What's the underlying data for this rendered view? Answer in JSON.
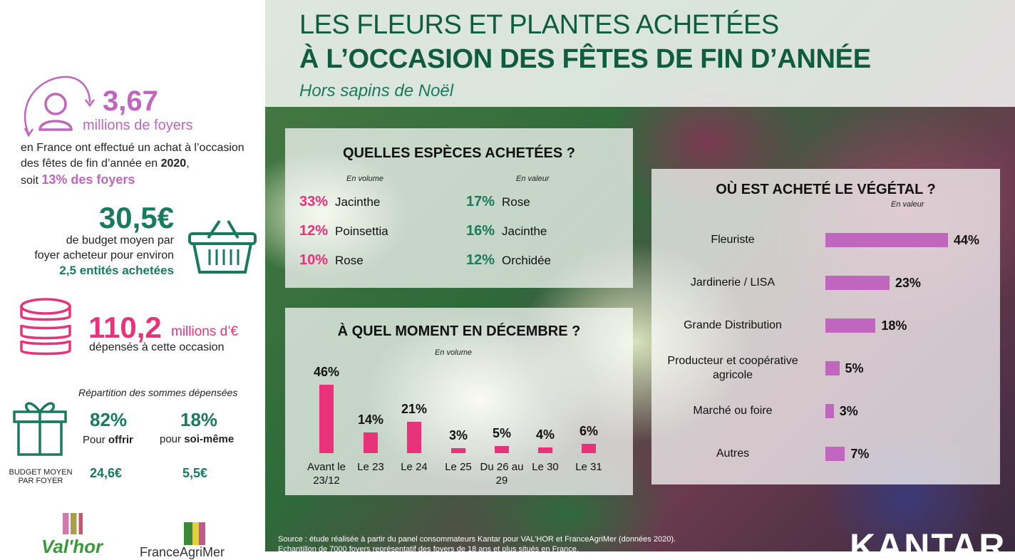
{
  "left": {
    "households": {
      "value": "3,67",
      "unit": "millions de foyers",
      "text1": "en France ont effectué un achat à l’occasion",
      "text2a": "des fêtes de fin d’année en ",
      "year": "2020",
      "text2b": ",",
      "text3a": "soit ",
      "share": "13% des foyers"
    },
    "budget": {
      "value": "30,5€",
      "text1": "de budget moyen par",
      "text2": "foyer acheteur pour environ",
      "entities": "2,5 entités achetées"
    },
    "total": {
      "value": "110,2",
      "unit": "millions d’€",
      "text": "dépensés à cette occasion"
    },
    "split": {
      "title": "Répartition des sommes dépensées",
      "gift_pct": "82%",
      "gift_label_a": "Pour ",
      "gift_label_b": "offrir",
      "self_pct": "18%",
      "self_label_a": "pour ",
      "self_label_b": "soi-même",
      "budget_label": "BUDGET MOYEN PAR FOYER",
      "gift_budget": "24,6€",
      "self_budget": "5,5€"
    },
    "logos": {
      "valhor": "Val'hor",
      "franceagrimer": "FranceAgriMer"
    }
  },
  "header": {
    "title1": "LES FLEURS ET PLANTES ACHETÉES",
    "title2": "À L’OCCASION DES FÊTES DE FIN D’ANNÉE",
    "subtitle": "Hors sapins de Noël"
  },
  "colors": {
    "pink": "#e8337a",
    "violet": "#c066be",
    "green": "#1a7a5e",
    "title": "#0f5c40"
  },
  "chart_data": [
    {
      "type": "table",
      "title": "QUELLES ESPÈCES ACHETÉES ?",
      "columns": [
        {
          "label": "En volume",
          "rows": [
            {
              "pct": "33%",
              "name": "Jacinthe"
            },
            {
              "pct": "12%",
              "name": "Poinsettia"
            },
            {
              "pct": "10%",
              "name": "Rose"
            }
          ]
        },
        {
          "label": "En valeur",
          "rows": [
            {
              "pct": "17%",
              "name": "Rose"
            },
            {
              "pct": "16%",
              "name": "Jacinthe"
            },
            {
              "pct": "12%",
              "name": "Orchidée"
            }
          ]
        }
      ]
    },
    {
      "type": "bar",
      "title": "À QUEL MOMENT EN DÉCEMBRE ?",
      "subtitle": "En volume",
      "categories": [
        "Avant le 23/12",
        "Le 23",
        "Le 24",
        "Le 25",
        "Du 26 au 29",
        "Le 30",
        "Le 31"
      ],
      "values": [
        46,
        14,
        21,
        3,
        5,
        4,
        6
      ],
      "labels": [
        "46%",
        "14%",
        "21%",
        "3%",
        "5%",
        "4%",
        "6%"
      ]
    },
    {
      "type": "bar",
      "orientation": "horizontal",
      "title": "OÙ EST ACHETÉ LE VÉGÉTAL ?",
      "subtitle": "En valeur",
      "categories": [
        "Fleuriste",
        "Jardinerie / LISA",
        "Grande Distribution",
        "Producteur et coopérative agricole",
        "Marché ou foire",
        "Autres"
      ],
      "values": [
        44,
        23,
        18,
        5,
        3,
        7
      ],
      "labels": [
        "44%",
        "23%",
        "18%",
        "5%",
        "3%",
        "7%"
      ]
    }
  ],
  "footer": {
    "source1": "Source : étude réalisée à partir du panel consommateurs Kantar pour VAL’HOR et FranceAgriMer (données 2020).",
    "source2": "Echantillon de 7000 foyers représentatif des foyers de 18 ans et plus situés en France.",
    "logo": "KANTAR"
  }
}
